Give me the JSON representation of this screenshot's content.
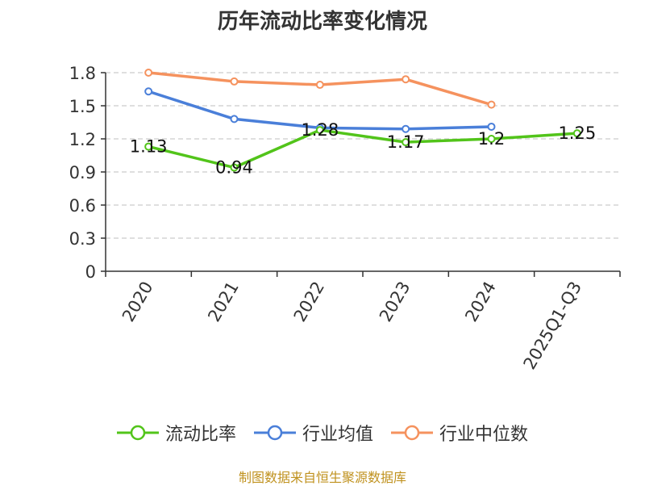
{
  "title": "历年流动比率变化情况",
  "source": "制图数据来自恒生聚源数据库",
  "chart_data": {
    "type": "line",
    "categories": [
      "2020",
      "2021",
      "2022",
      "2023",
      "2024",
      "2025Q1-Q3"
    ],
    "ylim": [
      0,
      1.8
    ],
    "yticks": [
      "0",
      "0.3",
      "0.6",
      "0.9",
      "1.2",
      "1.5",
      "1.8"
    ],
    "grid": true,
    "legend_position": "bottom",
    "series": [
      {
        "name": "流动比率",
        "color": "#52c41a",
        "values": [
          1.13,
          0.94,
          1.28,
          1.17,
          1.2,
          1.25
        ],
        "labels": [
          "1.13",
          "0.94",
          "1.28",
          "1.17",
          "1.2",
          "1.25"
        ]
      },
      {
        "name": "行业均值",
        "color": "#4a7fd9",
        "values": [
          1.63,
          1.38,
          1.3,
          1.29,
          1.31,
          null
        ]
      },
      {
        "name": "行业中位数",
        "color": "#f5925e",
        "values": [
          1.8,
          1.72,
          1.69,
          1.74,
          1.51,
          null
        ]
      }
    ]
  }
}
